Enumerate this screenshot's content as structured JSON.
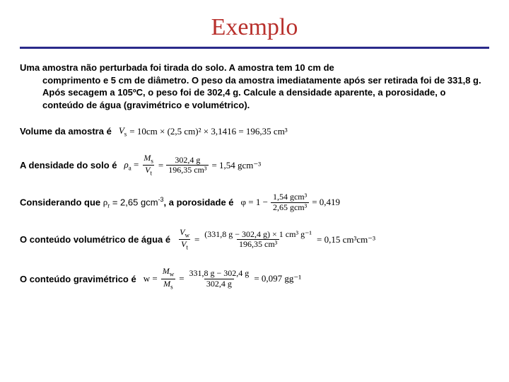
{
  "title": {
    "text": "Exemplo",
    "color": "#b8302c"
  },
  "rule_color": "#2a2a8a",
  "problem": {
    "lead": "Uma amostra não perturbada foi tirada do solo. A amostra tem 10 cm de",
    "body": "comprimento e 5 cm de diâmetro. O peso da amostra imediatamente após ser retirada foi de 331,8 g. Após secagem a 105ºC, o peso foi de 302,4 g. Calcule a densidade aparente, a porosidade, o conteúdo de água (gravimétrico e volumétrico)."
  },
  "lines": {
    "volume": {
      "label": "Volume da amostra é",
      "lhs": "V",
      "lhs_sub": "s",
      "rhs": "= 10cm × (2,5 cm)² × 3,1416 = 196,35 cm³"
    },
    "density": {
      "label": "A densidade do solo é",
      "lhs": "ρ",
      "lhs_sub": "a",
      "num1": "M",
      "num1_sub": "s",
      "den1": "V",
      "den1_sub": "t",
      "num2": "302,4 g",
      "den2": "196,35 cm³",
      "result": "= 1,54 gcm⁻³"
    },
    "porosity": {
      "label1": "Considerando que ",
      "rho": "ρ",
      "rho_sub": "r",
      "rho_val": " = 2,65 gcm",
      "rho_exp": "-3",
      "label2": ", a porosidade é",
      "lhs": "φ = 1 −",
      "num": "1,54 gcm³",
      "den": "2,65 gcm³",
      "result": "= 0,419"
    },
    "volumetric": {
      "label": "O conteúdo volumétrico de água é",
      "num1": "V",
      "num1_sub": "w",
      "den1": "V",
      "den1_sub": "t",
      "num2": "(331,8 g − 302,4 g) × 1 cm³ g⁻¹",
      "den2": "196,35 cm³",
      "result": "= 0,15 cm³cm⁻³"
    },
    "gravimetric": {
      "label": "O conteúdo gravimétrico é",
      "lhs": "w =",
      "num1": "M",
      "num1_sub": "w",
      "den1": "M",
      "den1_sub": "s",
      "num2": "331,8 g − 302,4 g",
      "den2": "302,4 g",
      "result": "= 0,097 gg⁻¹"
    }
  }
}
